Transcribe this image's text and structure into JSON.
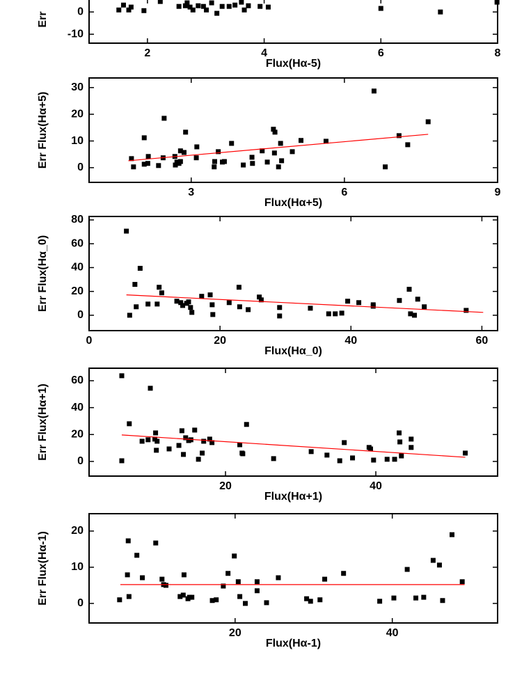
{
  "chart_data": [
    {
      "type": "scatter",
      "xlabel": "Flux(Hα-5)",
      "ylabel": "Err",
      "xlim": [
        1,
        8
      ],
      "ylim": [
        -14,
        6
      ],
      "xticks": [
        2,
        4,
        6,
        8
      ],
      "yticks": [
        -10,
        0
      ],
      "series": [
        {
          "color": "#000000",
          "x": [
            1.51,
            1.59,
            1.68,
            1.72,
            1.94,
            2.22,
            2.54,
            2.65,
            2.68,
            2.73,
            2.78,
            2.87,
            2.96,
            3.01,
            3.1,
            3.19,
            3.28,
            3.4,
            3.5,
            3.61,
            3.66,
            3.73,
            3.93,
            4.07,
            6.0,
            7.02,
            7.99
          ],
          "values": [
            0.9,
            3.1,
            0.9,
            2.2,
            0.6,
            4.7,
            2.5,
            2.8,
            4.1,
            2.2,
            0.9,
            2.8,
            2.5,
            0.9,
            4.1,
            -0.6,
            2.5,
            2.5,
            3.1,
            4.4,
            0.9,
            2.8,
            2.5,
            2.2,
            1.6,
            0.0,
            4.4
          ]
        }
      ]
    },
    {
      "type": "scatter",
      "xlabel": "Flux(Hα+5)",
      "ylabel": "Err Flux(Hα+5)",
      "xlim": [
        1,
        9
      ],
      "ylim": [
        -5.5,
        33.6
      ],
      "xticks": [
        3,
        6,
        9
      ],
      "yticks": [
        0,
        10,
        20,
        30
      ],
      "series": [
        {
          "color": "#000000",
          "x": [
            1.83,
            1.87,
            2.08,
            2.15,
            2.16,
            2.08,
            2.36,
            2.45,
            2.47,
            2.68,
            2.69,
            2.72,
            2.76,
            2.79,
            2.86,
            2.89,
            2.79,
            3.11,
            3.1,
            3.45,
            3.46,
            3.53,
            3.61,
            3.65,
            3.79,
            4.02,
            4.19,
            4.2,
            4.39,
            4.49,
            4.61,
            4.64,
            4.63,
            4.71,
            4.75,
            4.77,
            4.98,
            5.15,
            5.64,
            6.58,
            6.8,
            7.07,
            7.24,
            7.64
          ],
          "values": [
            3.4,
            0.3,
            11.2,
            1.6,
            4.2,
            1.3,
            0.8,
            3.7,
            18.5,
            4.2,
            1.0,
            2.1,
            1.6,
            6.3,
            5.7,
            13.3,
            2.3,
            7.8,
            3.7,
            0.3,
            2.3,
            6.0,
            2.1,
            2.3,
            9.1,
            1.0,
            3.9,
            1.6,
            6.3,
            2.1,
            14.4,
            13.3,
            5.5,
            0.3,
            9.1,
            2.6,
            6.0,
            10.2,
            9.9,
            28.7,
            0.3,
            12.0,
            8.6,
            17.2
          ]
        },
        {
          "type": "line",
          "color": "#ff0000",
          "x": [
            1.77,
            7.64
          ],
          "values": [
            2.6,
            12.5
          ]
        }
      ]
    },
    {
      "type": "scatter",
      "xlabel": "Flux(Hα_0)",
      "ylabel": "Err Flux(Hα_0)",
      "xlim": [
        0,
        62.4
      ],
      "ylim": [
        -12.9,
        82.9
      ],
      "xticks": [
        0,
        20,
        40,
        60
      ],
      "yticks": [
        0,
        20,
        40,
        60,
        80
      ],
      "series": [
        {
          "color": "#000000",
          "x": [
            5.7,
            6.2,
            7.0,
            7.2,
            7.8,
            9.0,
            10.4,
            10.7,
            11.1,
            13.4,
            14.0,
            14.3,
            14.9,
            15.2,
            15.5,
            15.7,
            17.2,
            18.5,
            18.8,
            18.9,
            21.4,
            22.9,
            23.0,
            24.3,
            26.0,
            26.3,
            29.1,
            29.1,
            33.8,
            36.6,
            37.6,
            38.6,
            39.5,
            41.2,
            43.4,
            43.4,
            47.4,
            48.9,
            49.1,
            49.7,
            50.2,
            51.2,
            57.6
          ],
          "values": [
            70.6,
            0,
            25.9,
            7.1,
            39.4,
            9.4,
            9.4,
            23.5,
            18.8,
            11.8,
            10.6,
            8.2,
            10.0,
            11.2,
            6.5,
            2.4,
            15.9,
            17.1,
            8.8,
            0.6,
            10.6,
            23.5,
            7.1,
            4.7,
            15.3,
            12.9,
            6.5,
            -0.6,
            5.9,
            1.2,
            1.2,
            1.8,
            11.8,
            10.6,
            8.8,
            7.6,
            12.4,
            21.8,
            1.2,
            0,
            13.5,
            7.1,
            4.1
          ]
        },
        {
          "type": "line",
          "color": "#ff0000",
          "x": [
            5.7,
            60.2
          ],
          "values": [
            17.1,
            2.4
          ]
        }
      ]
    },
    {
      "type": "scatter",
      "xlabel": "Flux(Hα+1)",
      "ylabel": "Err Flux(Hα+1)",
      "xlim": [
        1.85,
        56.2
      ],
      "ylim": [
        -10.9,
        69.3
      ],
      "xticks": [
        20,
        40
      ],
      "yticks": [
        0,
        20,
        40,
        60
      ],
      "series": [
        {
          "color": "#000000",
          "x": [
            6.2,
            6.2,
            7.2,
            8.9,
            9.7,
            10.0,
            10.6,
            10.7,
            10.8,
            10.9,
            12.5,
            13.8,
            14.2,
            14.4,
            14.7,
            15.1,
            15.4,
            15.9,
            16.4,
            16.9,
            17.1,
            17.9,
            18.2,
            21.9,
            22.2,
            22.3,
            22.8,
            26.4,
            31.4,
            33.5,
            35.2,
            35.8,
            36.9,
            39.1,
            39.3,
            39.7,
            41.5,
            42.5,
            43.1,
            43.2,
            43.4,
            44.7,
            44.7,
            51.9
          ],
          "values": [
            63.7,
            0.5,
            28.0,
            15.0,
            16.1,
            54.4,
            16.6,
            21.2,
            8.3,
            15.0,
            9.3,
            11.9,
            22.8,
            5.2,
            17.6,
            15.5,
            16.1,
            23.3,
            1.6,
            6.2,
            15.0,
            16.6,
            14.0,
            12.4,
            6.2,
            5.7,
            27.5,
            2.1,
            7.3,
            4.7,
            0.5,
            14.0,
            2.6,
            10.4,
            9.3,
            1.0,
            1.6,
            1.6,
            21.2,
            14.5,
            4.1,
            16.6,
            10.4,
            6.2
          ]
        },
        {
          "type": "line",
          "color": "#ff0000",
          "x": [
            6.2,
            51.9
          ],
          "values": [
            19.7,
            3.1
          ]
        }
      ]
    },
    {
      "type": "scatter",
      "xlabel": "Flux(Hα-1)",
      "ylabel": "Err Flux(Hα-1)",
      "xlim": [
        1.42,
        53.4
      ],
      "ylim": [
        -5.4,
        24.8
      ],
      "xticks": [
        20,
        40
      ],
      "yticks": [
        0,
        10,
        20
      ],
      "series": [
        {
          "color": "#000000",
          "x": [
            5.3,
            6.3,
            6.4,
            6.5,
            7.5,
            8.2,
            9.9,
            10.7,
            10.9,
            11.2,
            13.0,
            13.4,
            13.5,
            14.0,
            14.2,
            14.5,
            17.1,
            17.6,
            18.5,
            19.1,
            19.9,
            20.4,
            20.6,
            21.3,
            22.8,
            22.8,
            24.0,
            25.5,
            29.1,
            29.6,
            30.8,
            31.4,
            33.8,
            38.4,
            40.2,
            41.9,
            43.0,
            44.0,
            45.2,
            46.0,
            46.4,
            47.6,
            48.9
          ],
          "values": [
            1.0,
            7.9,
            17.3,
            1.9,
            13.3,
            7.1,
            16.7,
            6.7,
            5.2,
            5.0,
            1.9,
            2.3,
            7.9,
            1.3,
            1.7,
            1.7,
            0.8,
            1.0,
            4.8,
            8.3,
            13.1,
            6.0,
            1.9,
            0,
            6.0,
            3.5,
            0.2,
            7.1,
            1.3,
            0.6,
            1.0,
            6.7,
            8.3,
            0.6,
            1.5,
            9.4,
            1.5,
            1.7,
            11.9,
            10.6,
            0.8,
            19.0,
            6.0
          ]
        },
        {
          "type": "line",
          "color": "#ff0000",
          "x": [
            5.4,
            49.2
          ],
          "values": [
            5.2,
            5.2
          ]
        }
      ]
    }
  ]
}
